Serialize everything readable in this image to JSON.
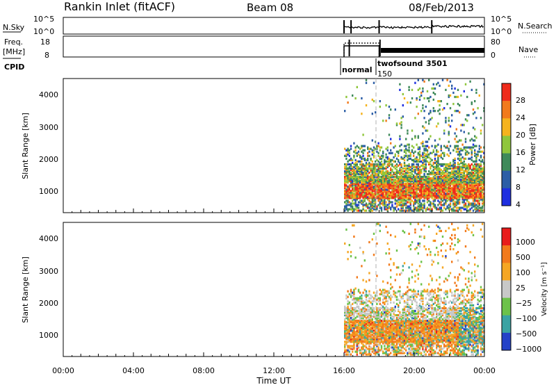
{
  "header": {
    "station": "Rankin Inlet (fitACF)",
    "beam": "Beam 08",
    "date": "08/Feb/2013"
  },
  "info_panels": {
    "nsky_label": "N.Sky",
    "nsky_ticks": [
      "10^5",
      "10^0"
    ],
    "nsearch_label": "N.Search",
    "nsearch_ticks": [
      "10^5",
      "10^0"
    ],
    "freq_label": "Freq.",
    "freq_unit": "[MHz]",
    "freq_ticks": [
      "18",
      "8"
    ],
    "nave_label": "Nave",
    "nave_ticks": [
      "80",
      "0"
    ],
    "cpid_label": "CPID",
    "cpid_entries": [
      {
        "name": "normal",
        "id": "150"
      },
      {
        "name": "twofsound",
        "id": "3501"
      }
    ]
  },
  "colors": {
    "power": [
      "#1f2fe0",
      "#2c5ea6",
      "#3f8a5a",
      "#8fc63c",
      "#f5b31e",
      "#f27a1c",
      "#ef2b1b"
    ],
    "velocity": [
      "#2442c8",
      "#3aa3a3",
      "#6cc24a",
      "#c8c8c8",
      "#f5a623",
      "#f27a1c",
      "#e81c1c"
    ]
  },
  "chart_data": [
    {
      "type": "heatmap",
      "panel": "power",
      "ylabel": "Slant Range [km]",
      "ylim": [
        200,
        4500
      ],
      "yticks": [
        "4000",
        "3000",
        "2000",
        "1000"
      ],
      "colorbar_label": "Power [dB]",
      "colorbar_ticks": [
        "28",
        "24",
        "20",
        "16",
        "12",
        "8",
        "4"
      ],
      "data_start_hour": 16.0
    },
    {
      "type": "heatmap",
      "panel": "velocity",
      "ylabel": "Slant Range [km]",
      "ylim": [
        200,
        4500
      ],
      "yticks": [
        "4000",
        "3000",
        "2000",
        "1000"
      ],
      "colorbar_label": "Velocity [m s⁻¹]",
      "colorbar_ticks": [
        "1000",
        "500",
        "100",
        "25",
        "−25",
        "−100",
        "−500",
        "−1000"
      ],
      "data_start_hour": 16.0,
      "xlabel": "Time UT",
      "xticks": [
        "00:00",
        "04:00",
        "08:00",
        "12:00",
        "16:00",
        "20:00",
        "00:00"
      ]
    }
  ]
}
